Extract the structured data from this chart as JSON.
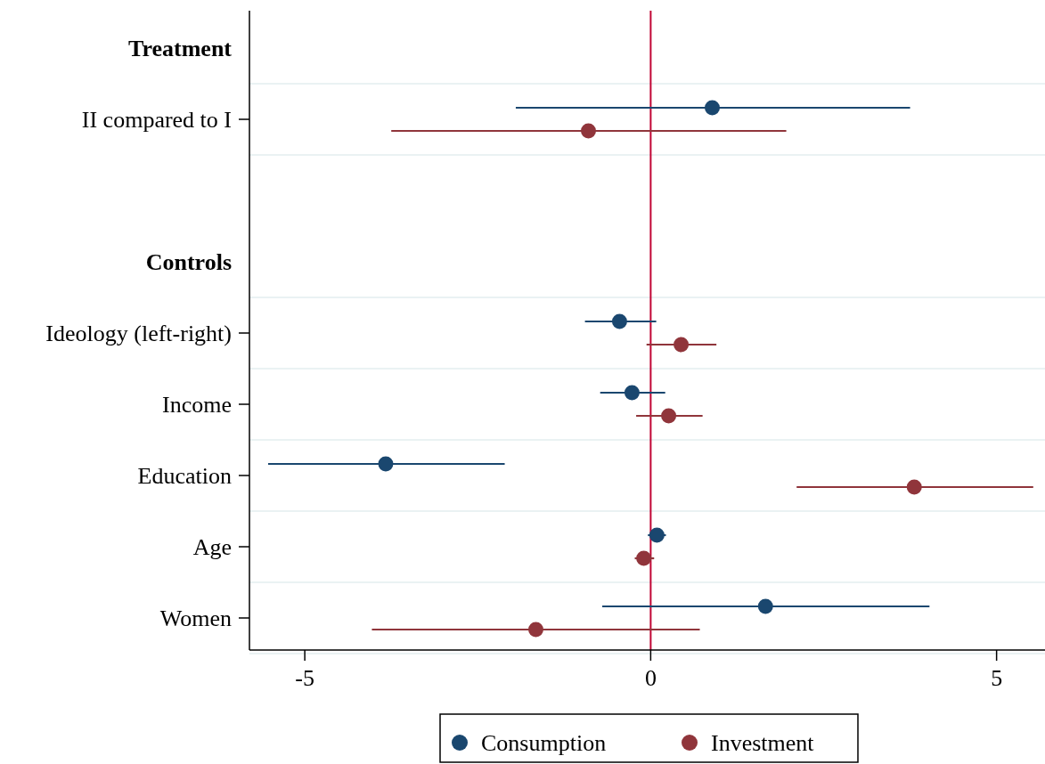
{
  "chart_data": {
    "type": "scatter",
    "orientation": "horizontal",
    "categories": [
      "Treatment",
      "II compared to I",
      null,
      "Controls",
      "Ideology (left-right)",
      "Income",
      "Education",
      "Age",
      "Women"
    ],
    "series": [
      {
        "name": "Consumption",
        "color": "#1a476f",
        "values": [
          null,
          0.89,
          null,
          null,
          -0.45,
          -0.27,
          -3.83,
          0.09,
          1.66
        ],
        "errors": [
          null,
          [
            -1.95,
            3.75
          ],
          null,
          null,
          [
            -0.95,
            0.08
          ],
          [
            -0.73,
            0.21
          ],
          [
            -5.53,
            -2.11
          ],
          [
            -0.04,
            0.22
          ],
          [
            -0.7,
            4.03
          ]
        ]
      },
      {
        "name": "Investment",
        "color": "#90353b",
        "values": [
          null,
          -0.9,
          null,
          null,
          0.44,
          0.26,
          3.81,
          -0.1,
          -1.66
        ],
        "errors": [
          null,
          [
            -3.75,
            1.96
          ],
          null,
          null,
          [
            -0.06,
            0.95
          ],
          [
            -0.21,
            0.75
          ],
          [
            2.11,
            5.53
          ],
          [
            -0.23,
            0.05
          ],
          [
            -4.03,
            0.71
          ]
        ]
      }
    ],
    "xlim": [
      -5.8,
      5.7
    ],
    "xticks": [
      -5,
      0,
      5
    ],
    "ref_lines": [
      {
        "axis": "x",
        "value": 0,
        "color": "#c10534"
      }
    ],
    "grid": true,
    "legend": "bottom",
    "marker": "circle"
  }
}
